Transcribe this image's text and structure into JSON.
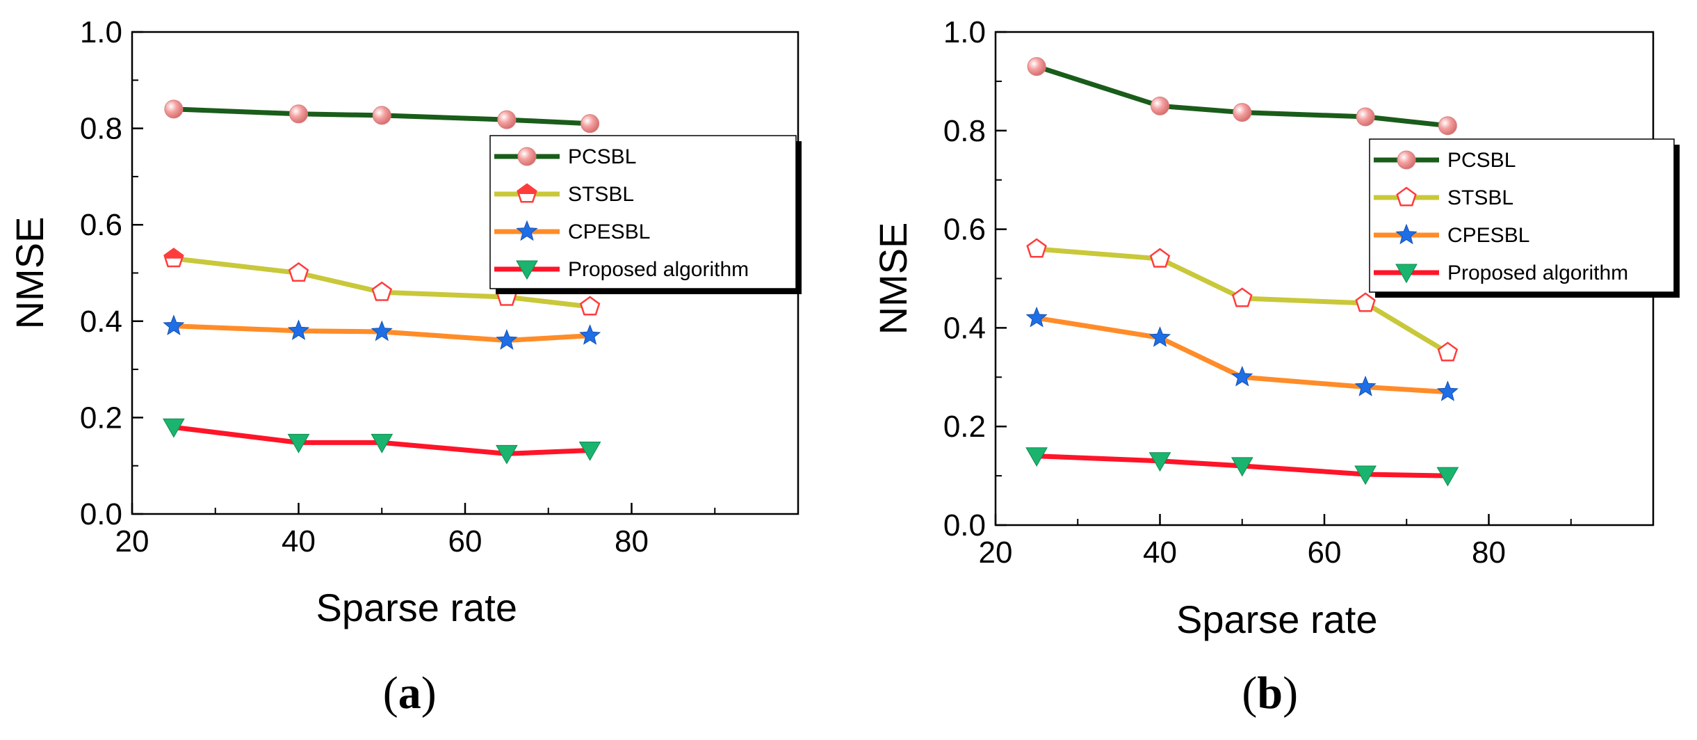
{
  "colors": {
    "PCSBL": "#1a5c1a",
    "STSBL": "#c8c83a",
    "CPESBL": "#ff8c28",
    "Proposed algorithm": "#ff1428",
    "marker_PCSBL": "#f4a0a0",
    "marker_STSBL": "#ff3c3c",
    "marker_CPESBL": "#1e6ee6",
    "marker_Proposed": "#1ab46e"
  },
  "chart_data": [
    {
      "type": "line",
      "panel_label": "a",
      "xlabel": "Sparse rate",
      "ylabel": "NMSE",
      "xlim": [
        20,
        100
      ],
      "ylim": [
        0,
        1.0
      ],
      "xticks": [
        "20",
        "40",
        "60",
        "80"
      ],
      "yticks": [
        "0.0",
        "0.2",
        "0.4",
        "0.6",
        "0.8",
        "1.0"
      ],
      "legend_position": "center-right",
      "series": [
        {
          "name": "PCSBL",
          "x": [
            25,
            40,
            50,
            65,
            75
          ],
          "y": [
            0.84,
            0.83,
            0.827,
            0.818,
            0.81
          ]
        },
        {
          "name": "STSBL",
          "x": [
            25,
            40,
            50,
            65,
            75
          ],
          "y": [
            0.53,
            0.5,
            0.46,
            0.45,
            0.43
          ]
        },
        {
          "name": "CPESBL",
          "x": [
            25,
            40,
            50,
            65,
            75
          ],
          "y": [
            0.39,
            0.38,
            0.378,
            0.36,
            0.37
          ]
        },
        {
          "name": "Proposed algorithm",
          "x": [
            25,
            40,
            50,
            65,
            75
          ],
          "y": [
            0.18,
            0.148,
            0.148,
            0.125,
            0.132
          ]
        }
      ]
    },
    {
      "type": "line",
      "panel_label": "b",
      "xlabel": "Sparse rate",
      "ylabel": "NMSE",
      "xlim": [
        20,
        100
      ],
      "ylim": [
        0,
        1.0
      ],
      "xticks": [
        "20",
        "40",
        "60",
        "80"
      ],
      "yticks": [
        "0.0",
        "0.2",
        "0.4",
        "0.6",
        "0.8",
        "1.0"
      ],
      "legend_position": "center-right",
      "series": [
        {
          "name": "PCSBL",
          "x": [
            25,
            40,
            50,
            65,
            75
          ],
          "y": [
            0.93,
            0.85,
            0.837,
            0.828,
            0.81
          ]
        },
        {
          "name": "STSBL",
          "x": [
            25,
            40,
            50,
            65,
            75
          ],
          "y": [
            0.56,
            0.54,
            0.46,
            0.45,
            0.35
          ]
        },
        {
          "name": "CPESBL",
          "x": [
            25,
            40,
            50,
            65,
            75
          ],
          "y": [
            0.42,
            0.38,
            0.3,
            0.28,
            0.27
          ]
        },
        {
          "name": "Proposed algorithm",
          "x": [
            25,
            40,
            50,
            65,
            75
          ],
          "y": [
            0.14,
            0.13,
            0.12,
            0.103,
            0.1
          ]
        }
      ]
    }
  ]
}
